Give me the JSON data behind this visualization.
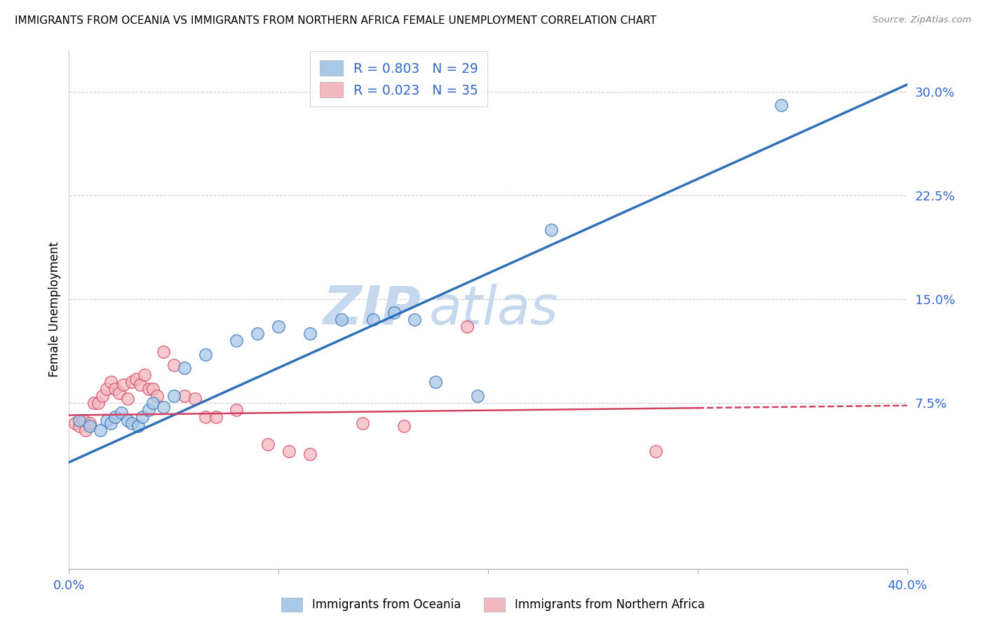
{
  "title": "IMMIGRANTS FROM OCEANIA VS IMMIGRANTS FROM NORTHERN AFRICA FEMALE UNEMPLOYMENT CORRELATION CHART",
  "source": "Source: ZipAtlas.com",
  "ylabel": "Female Unemployment",
  "right_yticks": [
    0.0,
    0.075,
    0.15,
    0.225,
    0.3
  ],
  "right_yticklabels": [
    "",
    "7.5%",
    "15.0%",
    "22.5%",
    "30.0%"
  ],
  "xmin": 0.0,
  "xmax": 0.4,
  "ymin": -0.045,
  "ymax": 0.33,
  "watermark_zip": "ZIP",
  "watermark_atlas": "atlas",
  "legend_r1": "R = 0.803",
  "legend_n1": "N = 29",
  "legend_r2": "R = 0.023",
  "legend_n2": "N = 35",
  "color_oceania": "#a8c8e8",
  "color_n_africa": "#f4b8c0",
  "color_line_oceania": "#3070b8",
  "color_line_n_africa": "#d04060",
  "oceania_x": [
    0.005,
    0.01,
    0.015,
    0.018,
    0.02,
    0.022,
    0.025,
    0.028,
    0.03,
    0.033,
    0.035,
    0.038,
    0.04,
    0.045,
    0.05,
    0.055,
    0.065,
    0.08,
    0.09,
    0.1,
    0.115,
    0.13,
    0.145,
    0.155,
    0.165,
    0.175,
    0.195,
    0.23,
    0.34
  ],
  "oceania_y": [
    0.062,
    0.058,
    0.055,
    0.062,
    0.06,
    0.065,
    0.068,
    0.062,
    0.06,
    0.058,
    0.065,
    0.07,
    0.075,
    0.072,
    0.08,
    0.1,
    0.11,
    0.12,
    0.125,
    0.13,
    0.125,
    0.135,
    0.135,
    0.14,
    0.135,
    0.09,
    0.08,
    0.2,
    0.29
  ],
  "n_africa_x": [
    0.003,
    0.005,
    0.007,
    0.008,
    0.01,
    0.012,
    0.014,
    0.016,
    0.018,
    0.02,
    0.022,
    0.024,
    0.026,
    0.028,
    0.03,
    0.032,
    0.034,
    0.036,
    0.038,
    0.04,
    0.042,
    0.045,
    0.05,
    0.055,
    0.06,
    0.065,
    0.07,
    0.08,
    0.095,
    0.105,
    0.115,
    0.14,
    0.16,
    0.19,
    0.28
  ],
  "n_africa_y": [
    0.06,
    0.058,
    0.062,
    0.055,
    0.06,
    0.075,
    0.075,
    0.08,
    0.085,
    0.09,
    0.085,
    0.082,
    0.088,
    0.078,
    0.09,
    0.092,
    0.088,
    0.095,
    0.085,
    0.085,
    0.08,
    0.112,
    0.102,
    0.08,
    0.078,
    0.065,
    0.065,
    0.07,
    0.045,
    0.04,
    0.038,
    0.06,
    0.058,
    0.13,
    0.04
  ],
  "oceania_line_x": [
    0.0,
    0.4
  ],
  "oceania_line_y": [
    0.032,
    0.305
  ],
  "n_africa_line_x": [
    0.0,
    0.4
  ],
  "n_africa_line_y": [
    0.066,
    0.073
  ],
  "grid_color": "#cccccc",
  "title_fontsize": 11,
  "axis_label_color": "#3366cc",
  "watermark_color_zip": "#c5d8ee",
  "watermark_color_atlas": "#c5d8ee",
  "watermark_fontsize": 55
}
